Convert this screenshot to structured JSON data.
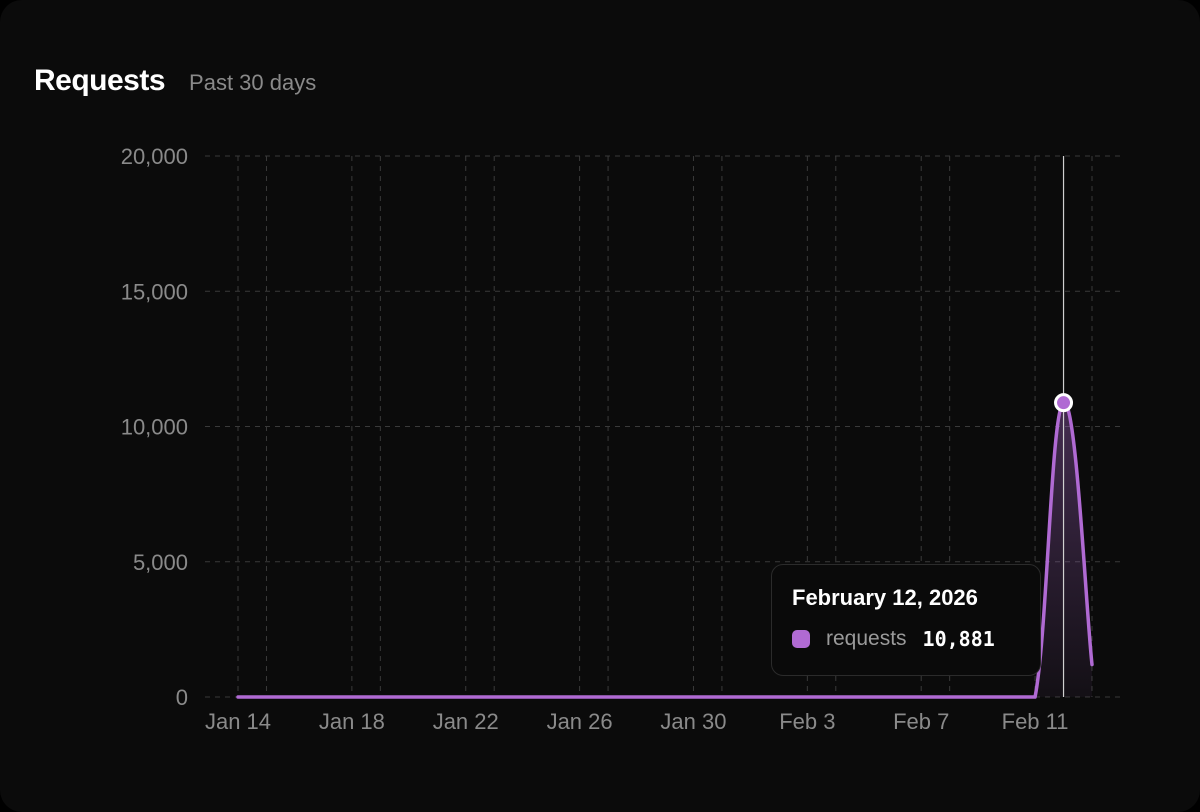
{
  "header": {
    "title": "Requests",
    "subtitle": "Past 30 days"
  },
  "colors": {
    "series": "#b06ad3",
    "grid": "#3a3a3a",
    "crosshair": "#d0d0d0"
  },
  "tooltip": {
    "date": "February 12, 2026",
    "series_name": "requests",
    "value": "10,881"
  },
  "chart_data": {
    "type": "area",
    "grid": true,
    "y_ticks": [
      0,
      5000,
      10000,
      15000,
      20000
    ],
    "y_tick_labels": [
      "0",
      "5,000",
      "10,000",
      "15,000",
      "20,000"
    ],
    "ylim": [
      0,
      20000
    ],
    "x_tick_labels": [
      "Jan 14",
      "Jan 18",
      "Jan 22",
      "Jan 26",
      "Jan 30",
      "Feb 3",
      "Feb 7",
      "Feb 11"
    ],
    "x": [
      "Jan 14",
      "Jan 15",
      "Jan 16",
      "Jan 17",
      "Jan 18",
      "Jan 19",
      "Jan 20",
      "Jan 21",
      "Jan 22",
      "Jan 23",
      "Jan 24",
      "Jan 25",
      "Jan 26",
      "Jan 27",
      "Jan 28",
      "Jan 29",
      "Jan 30",
      "Jan 31",
      "Feb 1",
      "Feb 2",
      "Feb 3",
      "Feb 4",
      "Feb 5",
      "Feb 6",
      "Feb 7",
      "Feb 8",
      "Feb 9",
      "Feb 10",
      "Feb 11",
      "Feb 12",
      "Feb 13"
    ],
    "series": [
      {
        "name": "requests",
        "values": [
          0,
          0,
          0,
          0,
          0,
          0,
          0,
          0,
          0,
          0,
          0,
          0,
          0,
          0,
          0,
          0,
          0,
          0,
          0,
          0,
          0,
          0,
          0,
          0,
          0,
          0,
          0,
          0,
          0,
          10881,
          1200
        ]
      }
    ],
    "highlight": {
      "x": "Feb 12",
      "value": 10881
    }
  }
}
